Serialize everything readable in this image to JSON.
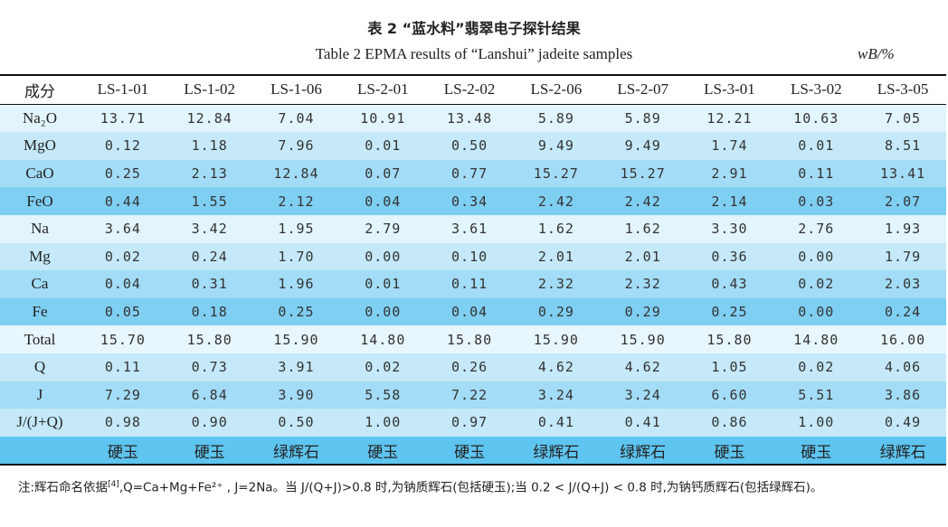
{
  "title": "表 2 “蓝水料”翡翠电子探针结果",
  "subtitle": "Table 2  EPMA results of “Lanshui” jadeite samples",
  "unit": "wB/%",
  "table": {
    "headers": [
      "成分",
      "LS-1-01",
      "LS-1-02",
      "LS-1-06",
      "LS-2-01",
      "LS-2-02",
      "LS-2-06",
      "LS-2-07",
      "LS-3-01",
      "LS-3-02",
      "LS-3-05"
    ],
    "rows": [
      {
        "label": "Na₂O",
        "bg": "#e2f4fc",
        "values": [
          "13.71",
          "12.84",
          "7.04",
          "10.91",
          "13.48",
          "5.89",
          "5.89",
          "12.21",
          "10.63",
          "7.05"
        ]
      },
      {
        "label": "MgO",
        "bg": "#c5e9f9",
        "values": [
          "0.12",
          "1.18",
          "7.96",
          "0.01",
          "0.50",
          "9.49",
          "9.49",
          "1.74",
          "0.01",
          "8.51"
        ]
      },
      {
        "label": "CaO",
        "bg": "#a3dcf6",
        "values": [
          "0.25",
          "2.13",
          "12.84",
          "0.07",
          "0.77",
          "15.27",
          "15.27",
          "2.91",
          "0.11",
          "13.41"
        ]
      },
      {
        "label": "FeO",
        "bg": "#7fcff3",
        "values": [
          "0.44",
          "1.55",
          "2.12",
          "0.04",
          "0.34",
          "2.42",
          "2.42",
          "2.14",
          "0.03",
          "2.07"
        ]
      },
      {
        "label": "Na",
        "bg": "#e2f4fc",
        "values": [
          "3.64",
          "3.42",
          "1.95",
          "2.79",
          "3.61",
          "1.62",
          "1.62",
          "3.30",
          "2.76",
          "1.93"
        ]
      },
      {
        "label": "Mg",
        "bg": "#c5e9f9",
        "values": [
          "0.02",
          "0.24",
          "1.70",
          "0.00",
          "0.10",
          "2.01",
          "2.01",
          "0.36",
          "0.00",
          "1.79"
        ]
      },
      {
        "label": "Ca",
        "bg": "#a3dcf6",
        "values": [
          "0.04",
          "0.31",
          "1.96",
          "0.01",
          "0.11",
          "2.32",
          "2.32",
          "0.43",
          "0.02",
          "2.03"
        ]
      },
      {
        "label": "Fe",
        "bg": "#7fcff3",
        "values": [
          "0.05",
          "0.18",
          "0.25",
          "0.00",
          "0.04",
          "0.29",
          "0.29",
          "0.25",
          "0.00",
          "0.24"
        ]
      },
      {
        "label": "Total",
        "bg": "#e8f6fd",
        "values": [
          "15.70",
          "15.80",
          "15.90",
          "14.80",
          "15.80",
          "15.90",
          "15.90",
          "15.80",
          "14.80",
          "16.00"
        ]
      },
      {
        "label": "Q",
        "bg": "#c5e9f9",
        "values": [
          "0.11",
          "0.73",
          "3.91",
          "0.02",
          "0.26",
          "4.62",
          "4.62",
          "1.05",
          "0.02",
          "4.06"
        ]
      },
      {
        "label": "J",
        "bg": "#a3dcf6",
        "values": [
          "7.29",
          "6.84",
          "3.90",
          "5.58",
          "7.22",
          "3.24",
          "3.24",
          "6.60",
          "5.51",
          "3.86"
        ]
      },
      {
        "label": "J/(J+Q)",
        "bg": "#c5e9f9",
        "values": [
          "0.98",
          "0.90",
          "0.50",
          "1.00",
          "0.97",
          "0.41",
          "0.41",
          "0.86",
          "1.00",
          "0.49"
        ]
      },
      {
        "label": "",
        "bg": "#5ec4f0",
        "values": [
          "硬玉",
          "硬玉",
          "绿辉石",
          "硬玉",
          "硬玉",
          "绿辉石",
          "绿辉石",
          "硬玉",
          "硬玉",
          "绿辉石"
        ]
      }
    ]
  },
  "note": {
    "line_a": "注:辉石命名依据",
    "ref": "[4]",
    "line_b": ",Q=Ca+Mg+Fe²⁺ , J=2Na。当 J/(Q+J)>0.8 时,为钠质辉石(包括硬玉);当 0.2 < J/(Q+J) < 0.8 时,为钠钙质辉石(包括绿辉石)。"
  }
}
